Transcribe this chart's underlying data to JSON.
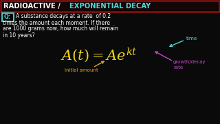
{
  "bg_color": "#0a0a0a",
  "title_radioactive": "RADIOACTIVE / ",
  "title_exponential": "EXPONENTIAL DECAY",
  "title_white": "#ffffff",
  "title_cyan": "#4dd9d9",
  "title_box_edge": "#8b1010",
  "title_box_face": "#150505",
  "q_box_color": "#4dd9d9",
  "question_color": "#ffffff",
  "formula_color": "#e8d020",
  "annotation_time_color": "#4dd9d9",
  "annotation_initial_color": "#e8a020",
  "annotation_growth_color": "#cc44cc",
  "q_line1": "A substance decays at a rate  of 0.2",
  "q_line2": "times the amount each moment. If there",
  "q_line3": "are 1000 grams now, how much will remain",
  "q_line4": "in 10 years?",
  "time_label": "time",
  "initial_label": "initial amount",
  "growth_label1": "growth/decay",
  "growth_label2": "rate"
}
